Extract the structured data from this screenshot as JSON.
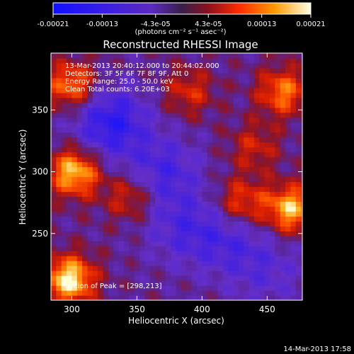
{
  "colorbar": {
    "tick_labels": [
      "-0.00021",
      "-0.00013",
      "-4.3e-05",
      "4.3e-05",
      "0.00013",
      "0.00021"
    ],
    "tick_values": [
      -0.00021,
      -0.00013,
      -4.3e-05,
      4.3e-05,
      0.00013,
      0.00021
    ],
    "min": -0.00021,
    "max": 0.00021,
    "unit_label": "(photons cm⁻² s⁻¹ asec⁻²)"
  },
  "info_lines": [
    "13-Mar-2013 20:40:12.000 to 20:44:02.000",
    "Detectors: 3F 5F 6F 7F 8F 9F, Att 0",
    "Energy Range: 25.0 - 50.0 keV",
    "Clean    Total counts: 6.20E+03"
  ],
  "peak_label": "Position of Peak = [298,213]",
  "footer_timestamp": "14-Mar-2013 17:58",
  "colors": {
    "background": "#000000",
    "axes": "#ffffff",
    "map_low": "#0000ff",
    "map_mid": "#6a2bd6",
    "map_high": "#ff5a00",
    "map_peak": "#ffff9a"
  },
  "chart_data": {
    "type": "heatmap",
    "title": "Reconstructed RHESSI Image",
    "xlabel": "Heliocentric X (arcsec)",
    "ylabel": "Heliocentric Y (arcsec)",
    "xlim": [
      284,
      477
    ],
    "ylim": [
      196,
      396
    ],
    "xticks": [
      300,
      350,
      400,
      450
    ],
    "yticks": [
      250,
      300,
      350
    ],
    "colormap_range": [
      -0.00021,
      0.00021
    ],
    "peak_position": [
      298,
      213
    ],
    "bright_regions": [
      {
        "x": 298,
        "y": 213,
        "value": 0.00021
      },
      {
        "x": 302,
        "y": 300,
        "value": 0.00019
      },
      {
        "x": 468,
        "y": 270,
        "value": 0.00018
      },
      {
        "x": 300,
        "y": 370,
        "value": 0.00015
      },
      {
        "x": 462,
        "y": 365,
        "value": 0.00014
      },
      {
        "x": 430,
        "y": 275,
        "value": 0.00012
      },
      {
        "x": 345,
        "y": 280,
        "value": 0.0001
      },
      {
        "x": 390,
        "y": 365,
        "value": 9e-05
      },
      {
        "x": 440,
        "y": 320,
        "value": 8e-05
      }
    ],
    "dim_regions": [
      {
        "x": 330,
        "y": 340,
        "value": -0.00015
      },
      {
        "x": 370,
        "y": 300,
        "value": -0.0001
      },
      {
        "x": 385,
        "y": 255,
        "value": -8e-05
      },
      {
        "x": 420,
        "y": 245,
        "value": -8e-05
      },
      {
        "x": 450,
        "y": 220,
        "value": -6e-05
      }
    ]
  }
}
